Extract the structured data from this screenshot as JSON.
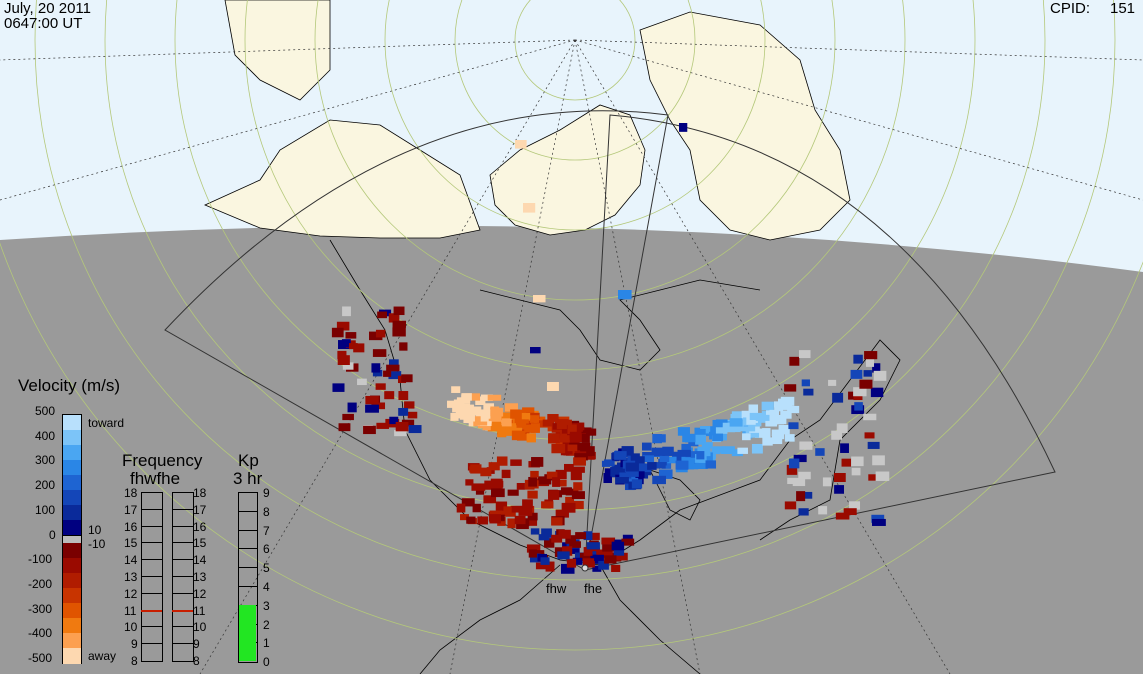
{
  "header": {
    "date": "July, 20 2011",
    "time": "0647:00 UT",
    "cpid_label": "CPID:",
    "cpid_value": "151"
  },
  "radars": [
    "fhw",
    "fhe"
  ],
  "velocity_scale": {
    "title": "Velocity (m/s)",
    "ticks": [
      "500",
      "400",
      "300",
      "200",
      "100",
      "0",
      "-100",
      "-200",
      "-300",
      "-400",
      "-500"
    ],
    "toward_label": "toward",
    "away_label": "away",
    "pos_threshold": "10",
    "neg_threshold": "-10",
    "colors_toward": [
      "#000080",
      "#0a2a9a",
      "#1446b8",
      "#1e64d2",
      "#2a86e6",
      "#4aa6f2",
      "#7cc4f8",
      "#b8e0fc"
    ],
    "colors_away": [
      "#7a0000",
      "#9a0a00",
      "#b01c00",
      "#c83400",
      "#e05400",
      "#f07a10",
      "#fca050",
      "#fdd8b0"
    ]
  },
  "frequency_panel": {
    "title": "Frequency",
    "subtitle": "fhwfhe",
    "ticks": [
      "18",
      "17",
      "16",
      "15",
      "14",
      "13",
      "12",
      "11",
      "10",
      "9",
      "8"
    ],
    "current_mhz": 11
  },
  "kp_panel": {
    "title": "Kp",
    "subtitle": "3 hr",
    "ticks": [
      "9",
      "8",
      "7",
      "6",
      "5",
      "4",
      "3",
      "2",
      "1",
      "0"
    ],
    "value": 3,
    "fill_color": "#22e622"
  },
  "colors": {
    "night": "#9a9a9a",
    "day_ocean": "#e8f4fc",
    "day_land": "#faf6e0",
    "grid_green": "#b4c87a"
  }
}
